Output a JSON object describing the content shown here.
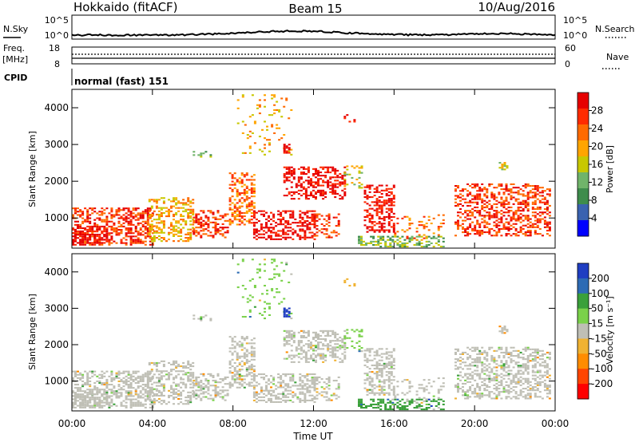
{
  "header": {
    "station": "Hokkaido (fitACF)",
    "beam": "Beam 15",
    "date": "10/Aug/2016"
  },
  "status": {
    "nsky_label": "N.Sky",
    "nsky_ticks": [
      "10^5",
      "10^0"
    ],
    "nsearch_label": "N.Search",
    "freq_label_1": "Freq.",
    "freq_label_2": "[MHz]",
    "freq_ticks": [
      "18",
      "8"
    ],
    "nave_label": "Nave",
    "nave_ticks": [
      "60",
      "0"
    ],
    "cpid_label": "CPID",
    "cpid_value": "normal (fast) 151"
  },
  "colors": {
    "power_scale": [
      "#0000ff",
      "#3a62b0",
      "#3e8c4c",
      "#70b46a",
      "#c8c800",
      "#ffa500",
      "#ff6a00",
      "#ff2b00",
      "#e60000"
    ],
    "velocity_scale": [
      "#1f3ec2",
      "#2d6bb4",
      "#3aa03a",
      "#7ad14a",
      "#bfbfb5",
      "#f0b232",
      "#ff8c00",
      "#ff4500",
      "#ff0000"
    ]
  },
  "chart_data": [
    {
      "type": "heatmap",
      "panel": "power",
      "title": "",
      "xlabel": "Time UT",
      "ylabel": "Slant Range [km]",
      "xlim": [
        "00:00",
        "24:00"
      ],
      "ylim": [
        180,
        4500
      ],
      "x_ticks": [
        "00:00",
        "04:00",
        "08:00",
        "12:00",
        "16:00",
        "20:00",
        "00:00"
      ],
      "y_ticks": [
        1000,
        2000,
        3000,
        4000
      ],
      "colorbar_label": "Power [dB]",
      "colorbar_ticks": [
        4,
        8,
        12,
        16,
        20,
        24,
        28
      ],
      "colorbar_range": [
        0,
        32
      ]
    },
    {
      "type": "heatmap",
      "panel": "velocity",
      "title": "",
      "xlabel": "Time UT",
      "ylabel": "Slant Range [km]",
      "xlim": [
        "00:00",
        "24:00"
      ],
      "ylim": [
        180,
        4500
      ],
      "x_ticks": [
        "00:00",
        "04:00",
        "08:00",
        "12:00",
        "16:00",
        "20:00",
        "00:00"
      ],
      "y_ticks": [
        1000,
        2000,
        3000,
        4000
      ],
      "colorbar_label": "Velocity [m s⁻¹]",
      "colorbar_ticks": [
        200,
        100,
        50,
        15,
        -15,
        -50,
        -100,
        -200
      ]
    }
  ]
}
